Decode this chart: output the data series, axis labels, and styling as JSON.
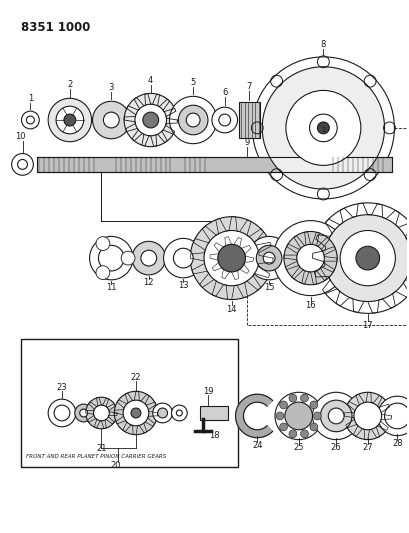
{
  "title": "8351 1000",
  "bg": "#ffffff",
  "lc": "#1a1a1a",
  "figw": 4.1,
  "figh": 5.33,
  "dpi": 100,
  "label_fs": 6.0,
  "title_fs": 8.5,
  "inset_caption": "FRONT AND REAR PLANET PINION CARRIER GEARS"
}
